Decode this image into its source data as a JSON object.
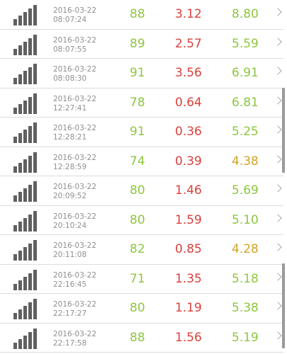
{
  "colors": {
    "green": "#8ec641",
    "red": "#d9413c",
    "orange": "#d4a128"
  },
  "icons": {
    "row_icon": "signal-bars-icon",
    "row_action": "chevron-right-icon"
  },
  "rows": [
    {
      "date": "2016-03-22",
      "time": "08:07:24",
      "v1": "88",
      "v2": "3.12",
      "v3": "8.80",
      "v1_color": "green",
      "v2_color": "red",
      "v3_color": "green"
    },
    {
      "date": "2016-03-22",
      "time": "08:07:55",
      "v1": "89",
      "v2": "2.57",
      "v3": "5.59",
      "v1_color": "green",
      "v2_color": "red",
      "v3_color": "green"
    },
    {
      "date": "2016-03-22",
      "time": "08:08:30",
      "v1": "91",
      "v2": "3.56",
      "v3": "6.91",
      "v1_color": "green",
      "v2_color": "red",
      "v3_color": "green"
    },
    {
      "date": "2016-03-22",
      "time": "12:27:41",
      "v1": "78",
      "v2": "0.64",
      "v3": "6.81",
      "v1_color": "green",
      "v2_color": "red",
      "v3_color": "green"
    },
    {
      "date": "2016-03-22",
      "time": "12:28:21",
      "v1": "91",
      "v2": "0.36",
      "v3": "5.25",
      "v1_color": "green",
      "v2_color": "red",
      "v3_color": "green"
    },
    {
      "date": "2016-03-22",
      "time": "12:28:59",
      "v1": "74",
      "v2": "0.39",
      "v3": "4.38",
      "v1_color": "green",
      "v2_color": "red",
      "v3_color": "orange"
    },
    {
      "date": "2016-03-22",
      "time": "20:09:52",
      "v1": "80",
      "v2": "1.46",
      "v3": "5.69",
      "v1_color": "green",
      "v2_color": "red",
      "v3_color": "green"
    },
    {
      "date": "2016-03-22",
      "time": "20:10:24",
      "v1": "80",
      "v2": "1.59",
      "v3": "5.10",
      "v1_color": "green",
      "v2_color": "red",
      "v3_color": "green"
    },
    {
      "date": "2016-03-22",
      "time": "20:11:08",
      "v1": "82",
      "v2": "0.85",
      "v3": "4.28",
      "v1_color": "green",
      "v2_color": "red",
      "v3_color": "orange"
    },
    {
      "date": "2016-03-22",
      "time": "22:16:45",
      "v1": "71",
      "v2": "1.35",
      "v3": "5.18",
      "v1_color": "green",
      "v2_color": "red",
      "v3_color": "green"
    },
    {
      "date": "2016-03-22",
      "time": "22:17:27",
      "v1": "80",
      "v2": "1.19",
      "v3": "5.38",
      "v1_color": "green",
      "v2_color": "red",
      "v3_color": "green"
    },
    {
      "date": "2016-03-22",
      "time": "22:17:58",
      "v1": "88",
      "v2": "1.56",
      "v3": "5.19",
      "v1_color": "green",
      "v2_color": "red",
      "v3_color": "green"
    }
  ]
}
